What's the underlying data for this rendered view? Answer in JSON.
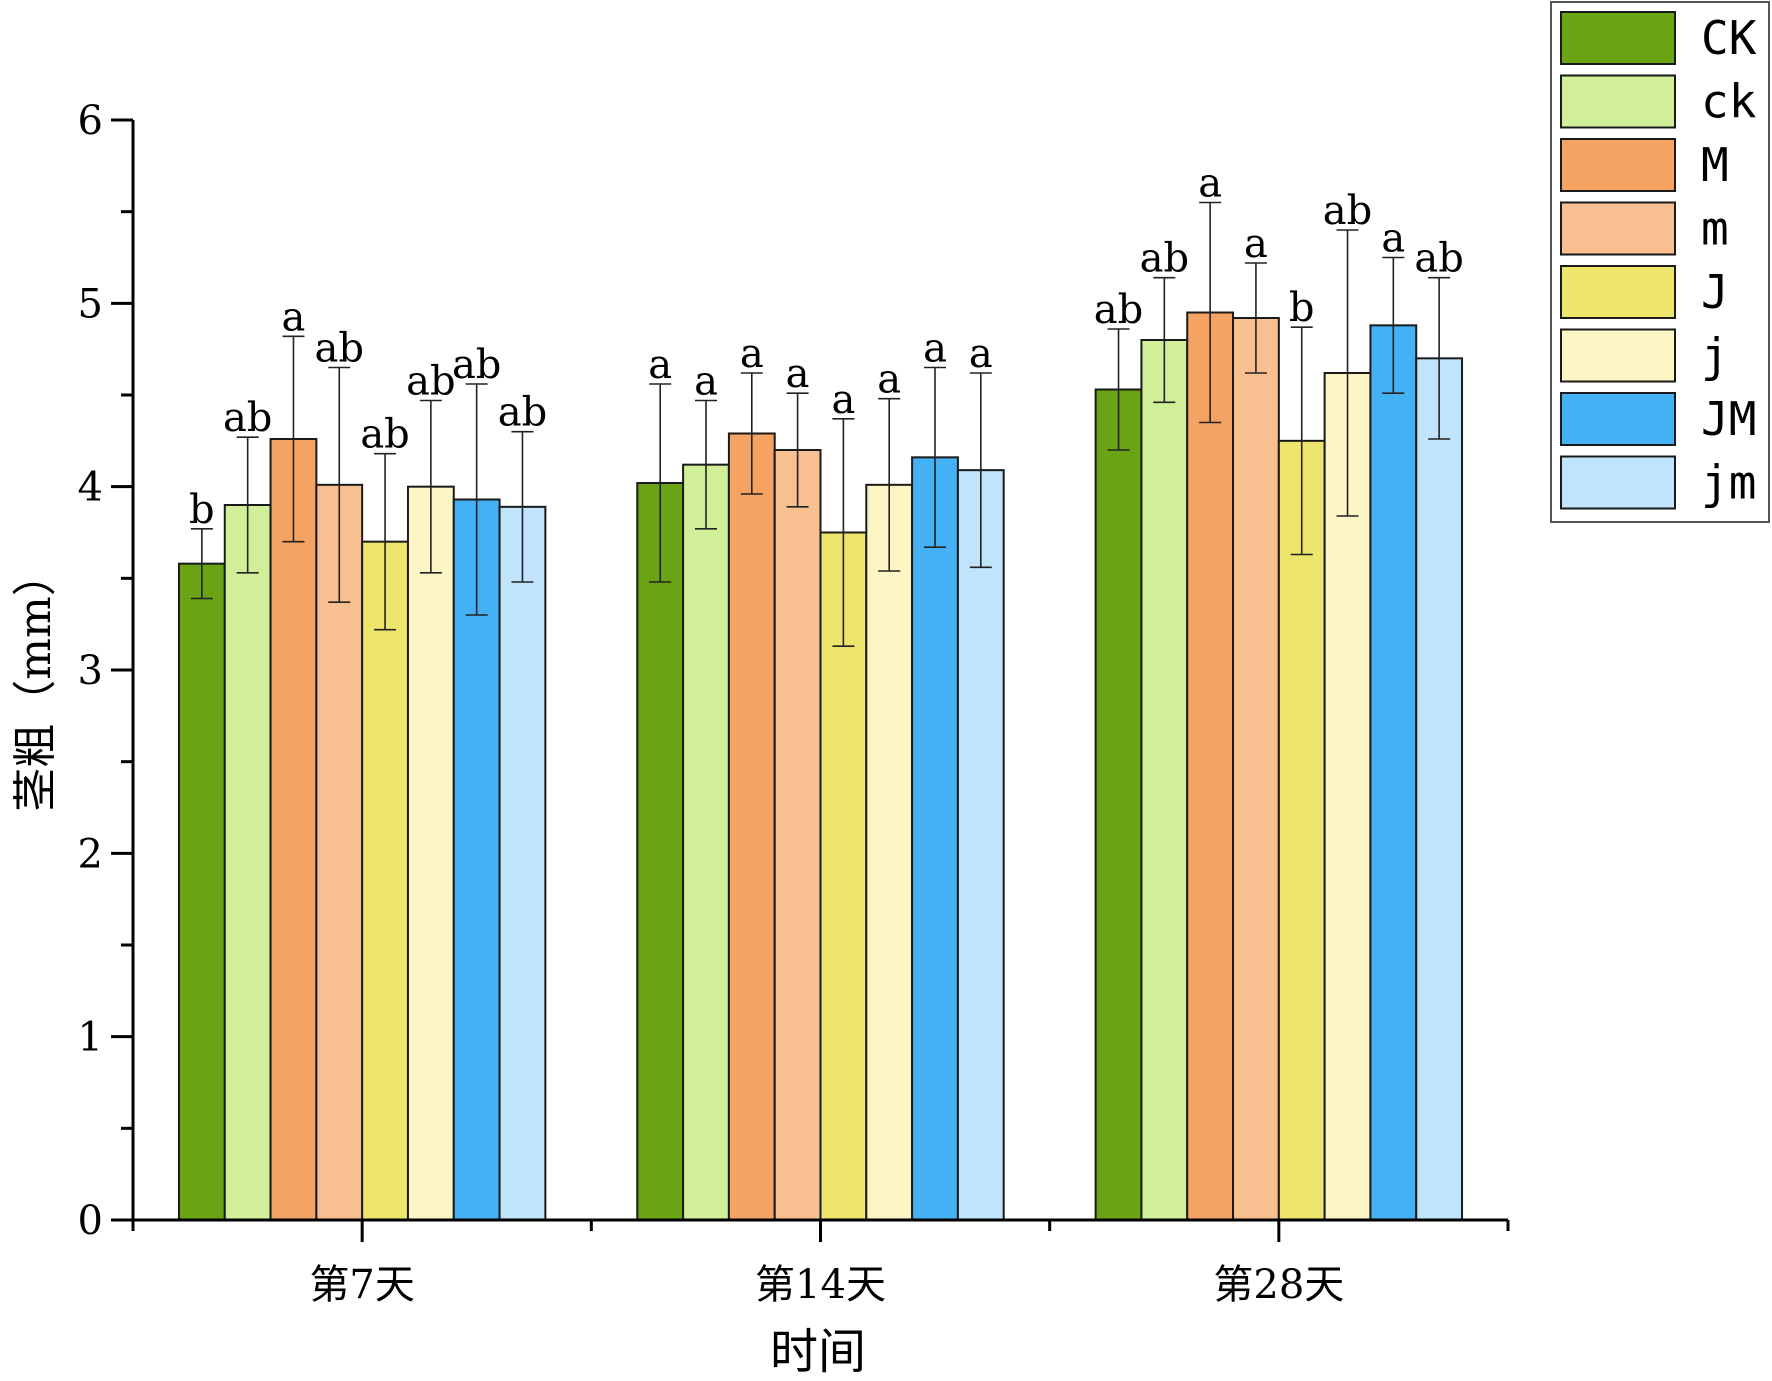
{
  "chart_data": {
    "type": "bar",
    "title": "",
    "xlabel": "时间",
    "ylabel": "茎粗（mm）",
    "ylim": [
      0,
      6
    ],
    "yticks": [
      "0",
      "1",
      "2",
      "3",
      "4",
      "5",
      "6"
    ],
    "categories": [
      "第7天",
      "第14天",
      "第28天"
    ],
    "legend_position": "top-right",
    "series": [
      {
        "name": "CK",
        "color": "#6aa313",
        "values": [
          3.58,
          4.02,
          4.53
        ],
        "errors": [
          0.19,
          0.54,
          0.33
        ],
        "labels": [
          "b",
          "a",
          "ab"
        ]
      },
      {
        "name": "ck",
        "color": "#d0ef98",
        "values": [
          3.9,
          4.12,
          4.8
        ],
        "errors": [
          0.37,
          0.35,
          0.34
        ],
        "labels": [
          "ab",
          "a",
          "ab"
        ]
      },
      {
        "name": "M",
        "color": "#f5a363",
        "values": [
          4.26,
          4.29,
          4.95
        ],
        "errors": [
          0.56,
          0.33,
          0.6
        ],
        "labels": [
          "a",
          "a",
          "a"
        ]
      },
      {
        "name": "m",
        "color": "#f8bf91",
        "values": [
          4.01,
          4.2,
          4.92
        ],
        "errors": [
          0.64,
          0.31,
          0.3
        ],
        "labels": [
          "ab",
          "a",
          "a"
        ]
      },
      {
        "name": "J",
        "color": "#eee56c",
        "values": [
          3.7,
          3.75,
          4.25
        ],
        "errors": [
          0.48,
          0.62,
          0.62
        ],
        "labels": [
          "ab",
          "a",
          "b"
        ]
      },
      {
        "name": "j",
        "color": "#fcf5c4",
        "values": [
          4.0,
          4.01,
          4.62
        ],
        "errors": [
          0.47,
          0.47,
          0.78
        ],
        "labels": [
          "ab",
          "a",
          "ab"
        ]
      },
      {
        "name": "JM",
        "color": "#43b1f4",
        "values": [
          3.93,
          4.16,
          4.88
        ],
        "errors": [
          0.63,
          0.49,
          0.37
        ],
        "labels": [
          "ab",
          "a",
          "a"
        ]
      },
      {
        "name": "jm",
        "color": "#bfe4fc",
        "values": [
          3.89,
          4.09,
          4.7
        ],
        "errors": [
          0.41,
          0.53,
          0.44
        ],
        "labels": [
          "ab",
          "a",
          "ab"
        ]
      }
    ]
  }
}
